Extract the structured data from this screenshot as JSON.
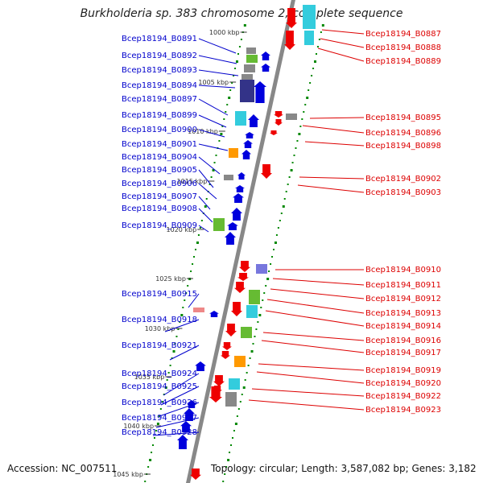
{
  "title": "Burkholderia sp. 383 chromosome 2, complete sequence",
  "footer": {
    "accession": "Accession: NC_007511",
    "topology": "Topology: circular; Length: 3,587,082 bp; Genes: 3,182"
  },
  "colors": {
    "forward_label": "#0000cc",
    "reverse_label": "#dd0000",
    "forward_arrow": "#0000dd",
    "reverse_arrow": "#ee0000",
    "backbone": "#888888",
    "tick": "#008800",
    "cog_cyan": "#33ccdd",
    "cog_green": "#66bb33",
    "cog_navy": "#333388",
    "cog_gray": "#888888",
    "cog_orange": "#ff9900",
    "cog_pink": "#ee8888",
    "cog_violet": "#7777dd"
  },
  "scale_labels": [
    "1000 kbp",
    "1005 kbp",
    "1010 kbp",
    "1015 kbp",
    "1020 kbp",
    "1025 kbp",
    "1030 kbp",
    "1035 kbp",
    "1040 kbp",
    "1045 kbp"
  ],
  "forward_genes": [
    "Bcep18194_B0891",
    "Bcep18194_B0892",
    "Bcep18194_B0893",
    "Bcep18194_B0894",
    "Bcep18194_B0897",
    "Bcep18194_B0899",
    "Bcep18194_B0900",
    "Bcep18194_B0901",
    "Bcep18194_B0904",
    "Bcep18194_B0905",
    "Bcep18194_B0906",
    "Bcep18194_B0907",
    "Bcep18194_B0908",
    "Bcep18194_B0909",
    "Bcep18194_B0915",
    "Bcep18194_B0918",
    "Bcep18194_B0921",
    "Bcep18194_B0924",
    "Bcep18194_B0925",
    "Bcep18194_B0926",
    "Bcep18194_B0927",
    "Bcep18194_B0928"
  ],
  "reverse_genes": [
    "Bcep18194_B0887",
    "Bcep18194_B0888",
    "Bcep18194_B0889",
    "Bcep18194_B0895",
    "Bcep18194_B0896",
    "Bcep18194_B0898",
    "Bcep18194_B0902",
    "Bcep18194_B0903",
    "Bcep18194_B0910",
    "Bcep18194_B0911",
    "Bcep18194_B0912",
    "Bcep18194_B0913",
    "Bcep18194_B0914",
    "Bcep18194_B0916",
    "Bcep18194_B0917",
    "Bcep18194_B0919",
    "Bcep18194_B0920",
    "Bcep18194_B0922",
    "Bcep18194_B0923"
  ]
}
